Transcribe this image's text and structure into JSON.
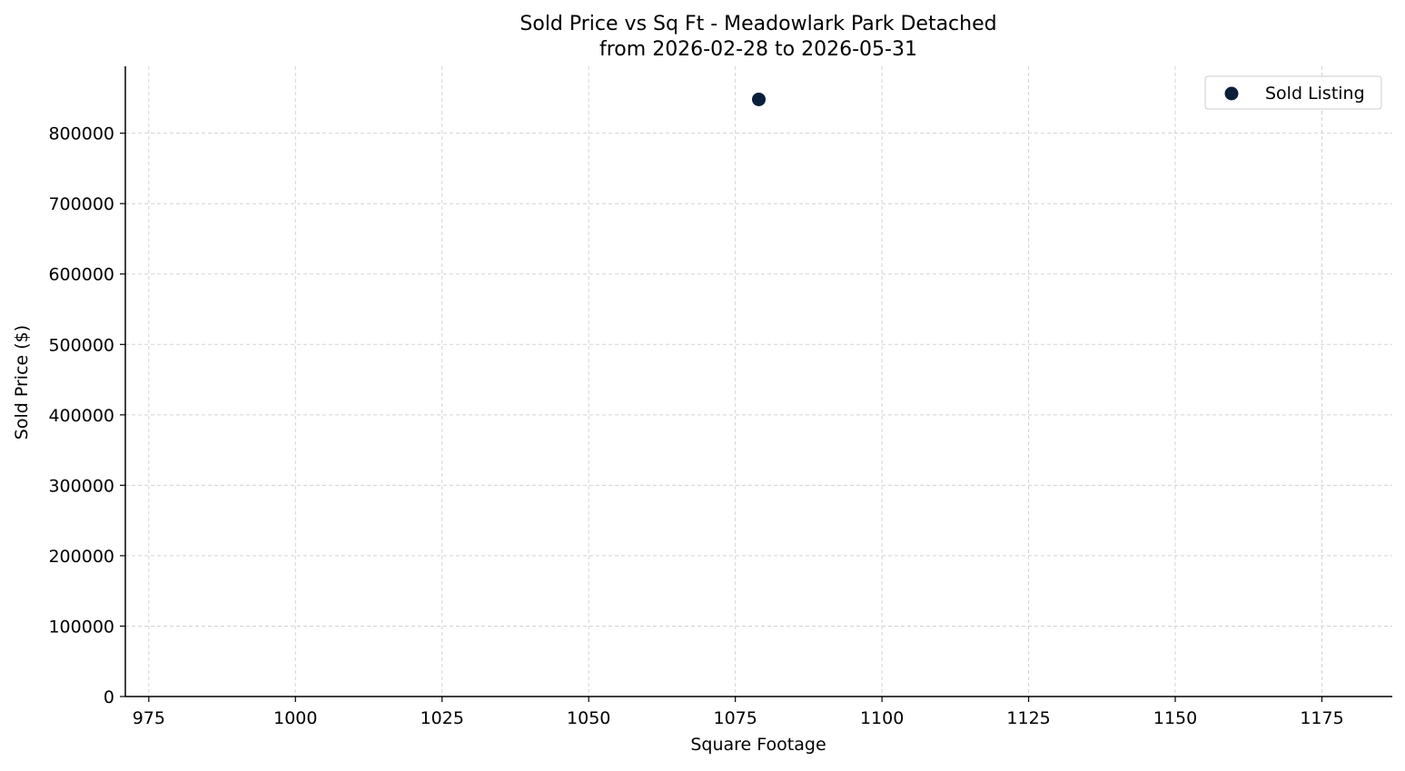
{
  "chart_data": {
    "type": "scatter",
    "title": "Sold Price vs Sq Ft - Meadowlark Park Detached",
    "subtitle": "from 2026-02-28 to 2026-05-31",
    "xlabel": "Square Footage",
    "ylabel": "Sold Price ($)",
    "xlim": [
      971,
      1187
    ],
    "ylim": [
      0,
      895000
    ],
    "x_ticks": [
      975,
      1000,
      1025,
      1050,
      1075,
      1100,
      1125,
      1150,
      1175
    ],
    "y_ticks": [
      0,
      100000,
      200000,
      300000,
      400000,
      500000,
      600000,
      700000,
      800000
    ],
    "grid": true,
    "legend": {
      "position": "top-right",
      "entries": [
        "Sold Listing"
      ]
    },
    "series": [
      {
        "name": "Sold Listing",
        "color": "#0b1f3a",
        "points": [
          {
            "x": 1079,
            "y": 848000
          }
        ]
      }
    ]
  }
}
